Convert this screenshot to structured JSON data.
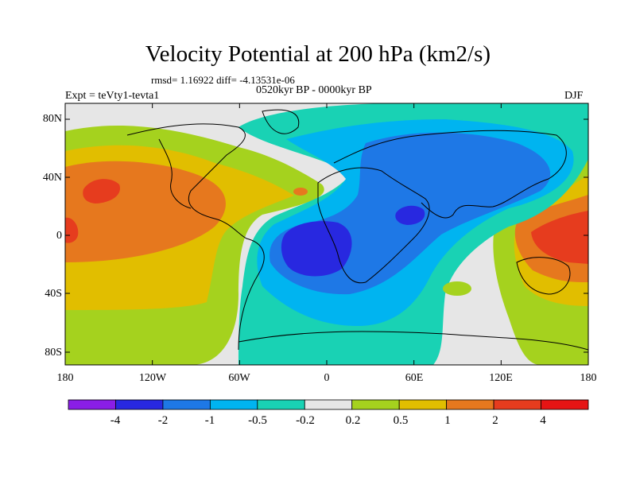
{
  "title": "Velocity Potential at 200 hPa (km2/s)",
  "stats": "rmsd= 1.16922 diff= -4.13531e-06",
  "period": "0520kyr BP - 0000kyr BP",
  "experiment": "Expt = teVty1-tevta1",
  "season": "DJF",
  "y_axis": {
    "ticks": [
      "80N",
      "40N",
      "0",
      "40S",
      "80S"
    ]
  },
  "x_axis": {
    "ticks": [
      "180",
      "120W",
      "60W",
      "0",
      "60E",
      "120E",
      "180"
    ]
  },
  "colorbar": {
    "colors": [
      "#8a1ee6",
      "#2828e0",
      "#1e78e6",
      "#00b4f0",
      "#19d2b4",
      "#e6e6e6",
      "#a5d21e",
      "#e1be00",
      "#e6781e",
      "#e63c1e",
      "#e61414"
    ],
    "labels": [
      "-4",
      "-2",
      "-1",
      "-0.5",
      "-0.2",
      "0.2",
      "0.5",
      "1",
      "2",
      "4"
    ]
  },
  "map_colors": {
    "neutral": "#e6e6e6",
    "pos05": "#a5d21e",
    "pos1": "#e1be00",
    "pos2": "#e6781e",
    "pos4": "#e63c1e",
    "neg02": "#19d2b4",
    "neg05": "#00b4f0",
    "neg1": "#1e78e6",
    "neg2": "#2828e0",
    "coast": "#000000"
  }
}
